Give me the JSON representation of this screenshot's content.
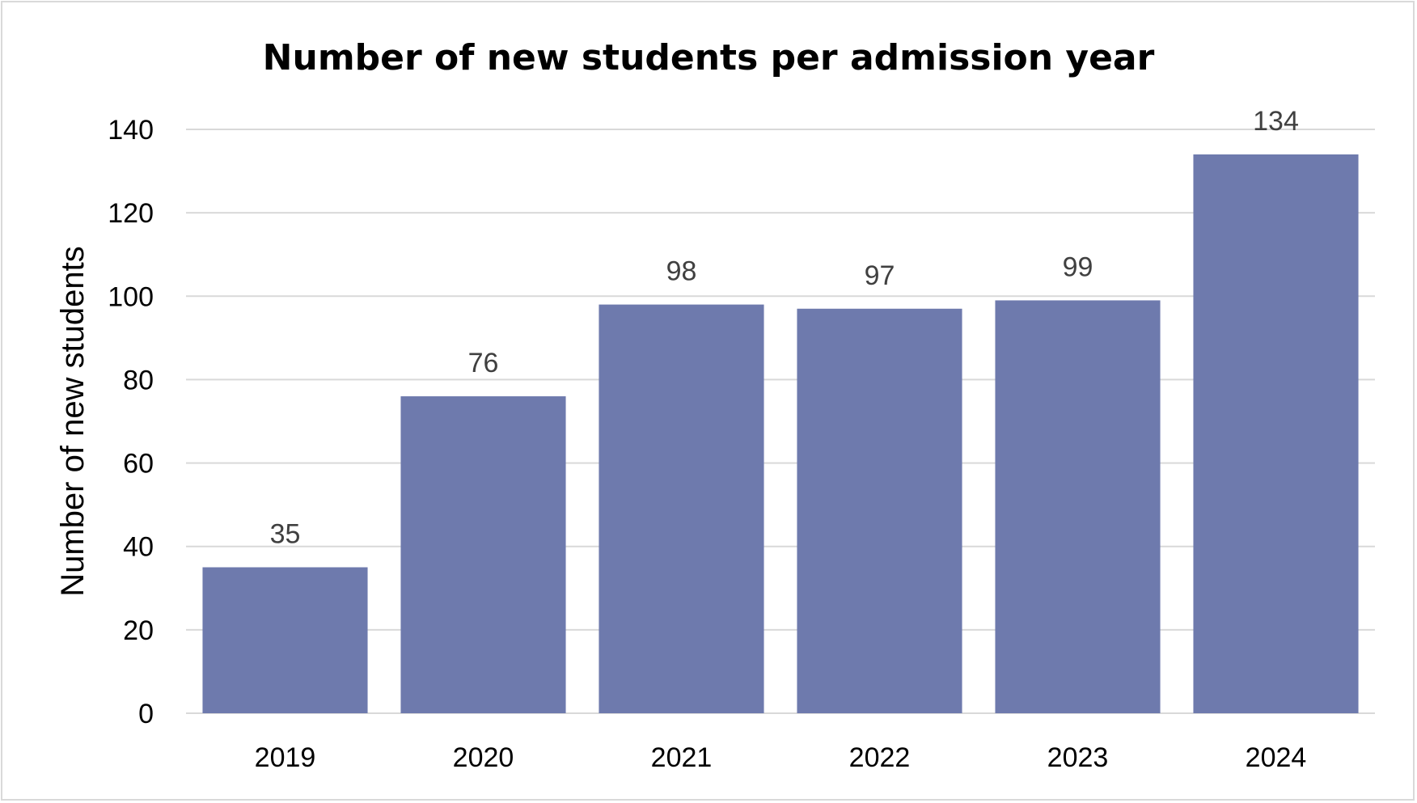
{
  "chart_data": {
    "type": "bar",
    "title": "Number of new students per admission year",
    "xlabel": "",
    "ylabel": "Number of new students",
    "categories": [
      "2019",
      "2020",
      "2021",
      "2022",
      "2023",
      "2024"
    ],
    "values": [
      35,
      76,
      98,
      97,
      99,
      134
    ],
    "data_labels": [
      "35",
      "76",
      "98",
      "97",
      "99",
      "134"
    ],
    "y_ticks": [
      "0",
      "20",
      "40",
      "60",
      "80",
      "100",
      "120",
      "140"
    ],
    "ylim": [
      0,
      140
    ],
    "grid": true,
    "legend": "none",
    "bar_color": "#6e7aad"
  }
}
